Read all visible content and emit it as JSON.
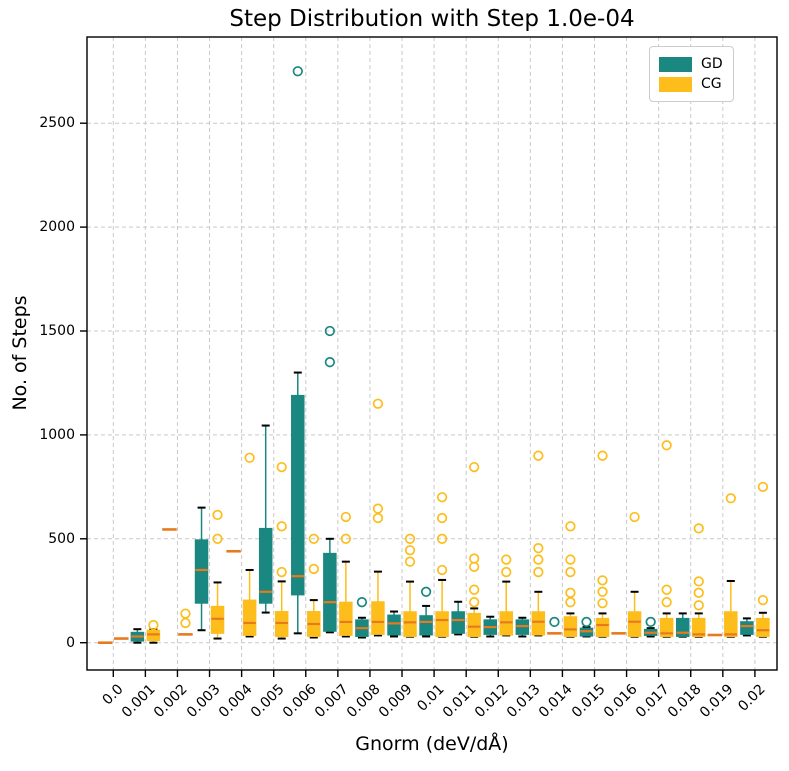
{
  "title": "Step Distribution with Step 1.0e-04",
  "axes": {
    "x_label": "Gnorm (deV/dÅ)",
    "y_label": "No. of Steps",
    "y_ticks": [
      0,
      500,
      1000,
      1500,
      2000,
      2500
    ],
    "x_tick_labels": [
      "0.0",
      "0.001",
      "0.002",
      "0.003",
      "0.004",
      "0.005",
      "0.006",
      "0.007",
      "0.008",
      "0.009",
      "0.01",
      "0.011",
      "0.012",
      "0.013",
      "0.014",
      "0.015",
      "0.016",
      "0.017",
      "0.018",
      "0.019",
      "0.02"
    ]
  },
  "legend": {
    "items": [
      {
        "label": "GD",
        "color": "#1a8780"
      },
      {
        "label": "CG",
        "color": "#fdbe1c"
      }
    ]
  },
  "colors": {
    "gd": "#1a8780",
    "cg": "#fdbe1c",
    "median": "#e87a1e",
    "grid": "#c9c9c9",
    "cap": "#000000",
    "spine": "#000000"
  },
  "chart_data": {
    "type": "boxplot",
    "title": "Step Distribution with Step 1.0e-04",
    "xlabel": "Gnorm (deV/dÅ)",
    "ylabel": "No. of Steps",
    "categories": [
      "0.0",
      "0.001",
      "0.002",
      "0.003",
      "0.004",
      "0.005",
      "0.006",
      "0.007",
      "0.008",
      "0.009",
      "0.01",
      "0.011",
      "0.012",
      "0.013",
      "0.014",
      "0.015",
      "0.016",
      "0.017",
      "0.018",
      "0.019",
      "0.02"
    ],
    "ylim": [
      -130,
      2915
    ],
    "grid": "both-dashed",
    "legend_position": "upper right",
    "series": [
      {
        "name": "GD",
        "color": "#1a8780",
        "boxes": [
          {
            "whislo": 0,
            "q1": 0,
            "med": 0,
            "q3": 0,
            "whishi": 0,
            "fliers": []
          },
          {
            "whislo": 0,
            "q1": 8,
            "med": 30,
            "q3": 50,
            "whishi": 65,
            "fliers": []
          },
          {
            "whislo": 545,
            "q1": 545,
            "med": 545,
            "q3": 545,
            "whishi": 545,
            "fliers": []
          },
          {
            "whislo": 60,
            "q1": 190,
            "med": 350,
            "q3": 495,
            "whishi": 650,
            "fliers": []
          },
          {
            "whislo": 440,
            "q1": 440,
            "med": 440,
            "q3": 440,
            "whishi": 440,
            "fliers": []
          },
          {
            "whislo": 145,
            "q1": 190,
            "med": 245,
            "q3": 550,
            "whishi": 1045,
            "fliers": []
          },
          {
            "whislo": 45,
            "q1": 230,
            "med": 320,
            "q3": 1190,
            "whishi": 1300,
            "fliers": [
              2750
            ]
          },
          {
            "whislo": 50,
            "q1": 55,
            "med": 195,
            "q3": 430,
            "whishi": 500,
            "fliers": [
              1350,
              1500
            ]
          },
          {
            "whislo": 25,
            "q1": 30,
            "med": 70,
            "q3": 110,
            "whishi": 120,
            "fliers": [
              195
            ]
          },
          {
            "whislo": 30,
            "q1": 37,
            "med": 93,
            "q3": 133,
            "whishi": 150,
            "fliers": []
          },
          {
            "whislo": 30,
            "q1": 37,
            "med": 100,
            "q3": 130,
            "whishi": 177,
            "fliers": [
              245
            ]
          },
          {
            "whislo": 40,
            "q1": 45,
            "med": 109,
            "q3": 149,
            "whishi": 197,
            "fliers": []
          },
          {
            "whislo": 30,
            "q1": 40,
            "med": 75,
            "q3": 110,
            "whishi": 125,
            "fliers": []
          },
          {
            "whislo": 30,
            "q1": 40,
            "med": 80,
            "q3": 110,
            "whishi": 120,
            "fliers": []
          },
          {
            "whislo": 45,
            "q1": 45,
            "med": 45,
            "q3": 45,
            "whishi": 45,
            "fliers": [
              100
            ]
          },
          {
            "whislo": 30,
            "q1": 32,
            "med": 55,
            "q3": 70,
            "whishi": 75,
            "fliers": [
              100
            ]
          },
          {
            "whislo": 45,
            "q1": 45,
            "med": 45,
            "q3": 45,
            "whishi": 45,
            "fliers": []
          },
          {
            "whislo": 30,
            "q1": 35,
            "med": 48,
            "q3": 64,
            "whishi": 70,
            "fliers": [
              100
            ]
          },
          {
            "whislo": 29,
            "q1": 30,
            "med": 48,
            "q3": 117,
            "whishi": 141,
            "fliers": []
          },
          {
            "whislo": 37,
            "q1": 37,
            "med": 37,
            "q3": 37,
            "whishi": 37,
            "fliers": []
          },
          {
            "whislo": 35,
            "q1": 40,
            "med": 80,
            "q3": 101,
            "whishi": 117,
            "fliers": []
          }
        ]
      },
      {
        "name": "CG",
        "color": "#fdbe1c",
        "boxes": [
          {
            "whislo": 20,
            "q1": 20,
            "med": 20,
            "q3": 20,
            "whishi": 20,
            "fliers": []
          },
          {
            "whislo": 0,
            "q1": 10,
            "med": 40,
            "q3": 60,
            "whishi": 65,
            "fliers": [
              85
            ]
          },
          {
            "whislo": 40,
            "q1": 40,
            "med": 40,
            "q3": 40,
            "whishi": 40,
            "fliers": [
              95,
              140
            ]
          },
          {
            "whislo": 20,
            "q1": 45,
            "med": 115,
            "q3": 175,
            "whishi": 290,
            "fliers": [
              500,
              615
            ]
          },
          {
            "whislo": 30,
            "q1": 35,
            "med": 95,
            "q3": 205,
            "whishi": 350,
            "fliers": [
              890
            ]
          },
          {
            "whislo": 20,
            "q1": 30,
            "med": 95,
            "q3": 150,
            "whishi": 295,
            "fliers": [
              340,
              560,
              845
            ]
          },
          {
            "whislo": 25,
            "q1": 30,
            "med": 90,
            "q3": 150,
            "whishi": 205,
            "fliers": [
              355,
              500
            ]
          },
          {
            "whislo": 30,
            "q1": 35,
            "med": 100,
            "q3": 195,
            "whishi": 390,
            "fliers": [
              500,
              605
            ]
          },
          {
            "whislo": 35,
            "q1": 40,
            "med": 100,
            "q3": 197,
            "whishi": 342,
            "fliers": [
              600,
              645,
              1150
            ]
          },
          {
            "whislo": 29,
            "q1": 30,
            "med": 98,
            "q3": 149,
            "whishi": 294,
            "fliers": [
              390,
              445,
              500
            ]
          },
          {
            "whislo": 29,
            "q1": 30,
            "med": 109,
            "q3": 149,
            "whishi": 302,
            "fliers": [
              350,
              500,
              600,
              700
            ]
          },
          {
            "whislo": 29,
            "q1": 30,
            "med": 77,
            "q3": 141,
            "whishi": 165,
            "fliers": [
              195,
              255,
              365,
              405,
              845
            ]
          },
          {
            "whislo": 35,
            "q1": 37,
            "med": 98,
            "q3": 149,
            "whishi": 294,
            "fliers": [
              340,
              400
            ]
          },
          {
            "whislo": 35,
            "q1": 37,
            "med": 101,
            "q3": 149,
            "whishi": 245,
            "fliers": [
              340,
              400,
              455,
              900
            ]
          },
          {
            "whislo": 29,
            "q1": 30,
            "med": 64,
            "q3": 125,
            "whishi": 141,
            "fliers": [
              195,
              240,
              340,
              400,
              560
            ]
          },
          {
            "whislo": 29,
            "q1": 30,
            "med": 85,
            "q3": 117,
            "whishi": 141,
            "fliers": [
              190,
              245,
              300,
              900
            ]
          },
          {
            "whislo": 29,
            "q1": 30,
            "med": 101,
            "q3": 149,
            "whishi": 245,
            "fliers": [
              605
            ]
          },
          {
            "whislo": 29,
            "q1": 30,
            "med": 45,
            "q3": 117,
            "whishi": 141,
            "fliers": [
              195,
              255,
              950
            ]
          },
          {
            "whislo": 29,
            "q1": 30,
            "med": 40,
            "q3": 117,
            "whishi": 141,
            "fliers": [
              180,
              240,
              295,
              550
            ]
          },
          {
            "whislo": 29,
            "q1": 30,
            "med": 40,
            "q3": 149,
            "whishi": 297,
            "fliers": [
              695
            ]
          },
          {
            "whislo": 29,
            "q1": 30,
            "med": 60,
            "q3": 117,
            "whishi": 144,
            "fliers": [
              205,
              750
            ]
          }
        ]
      }
    ]
  }
}
